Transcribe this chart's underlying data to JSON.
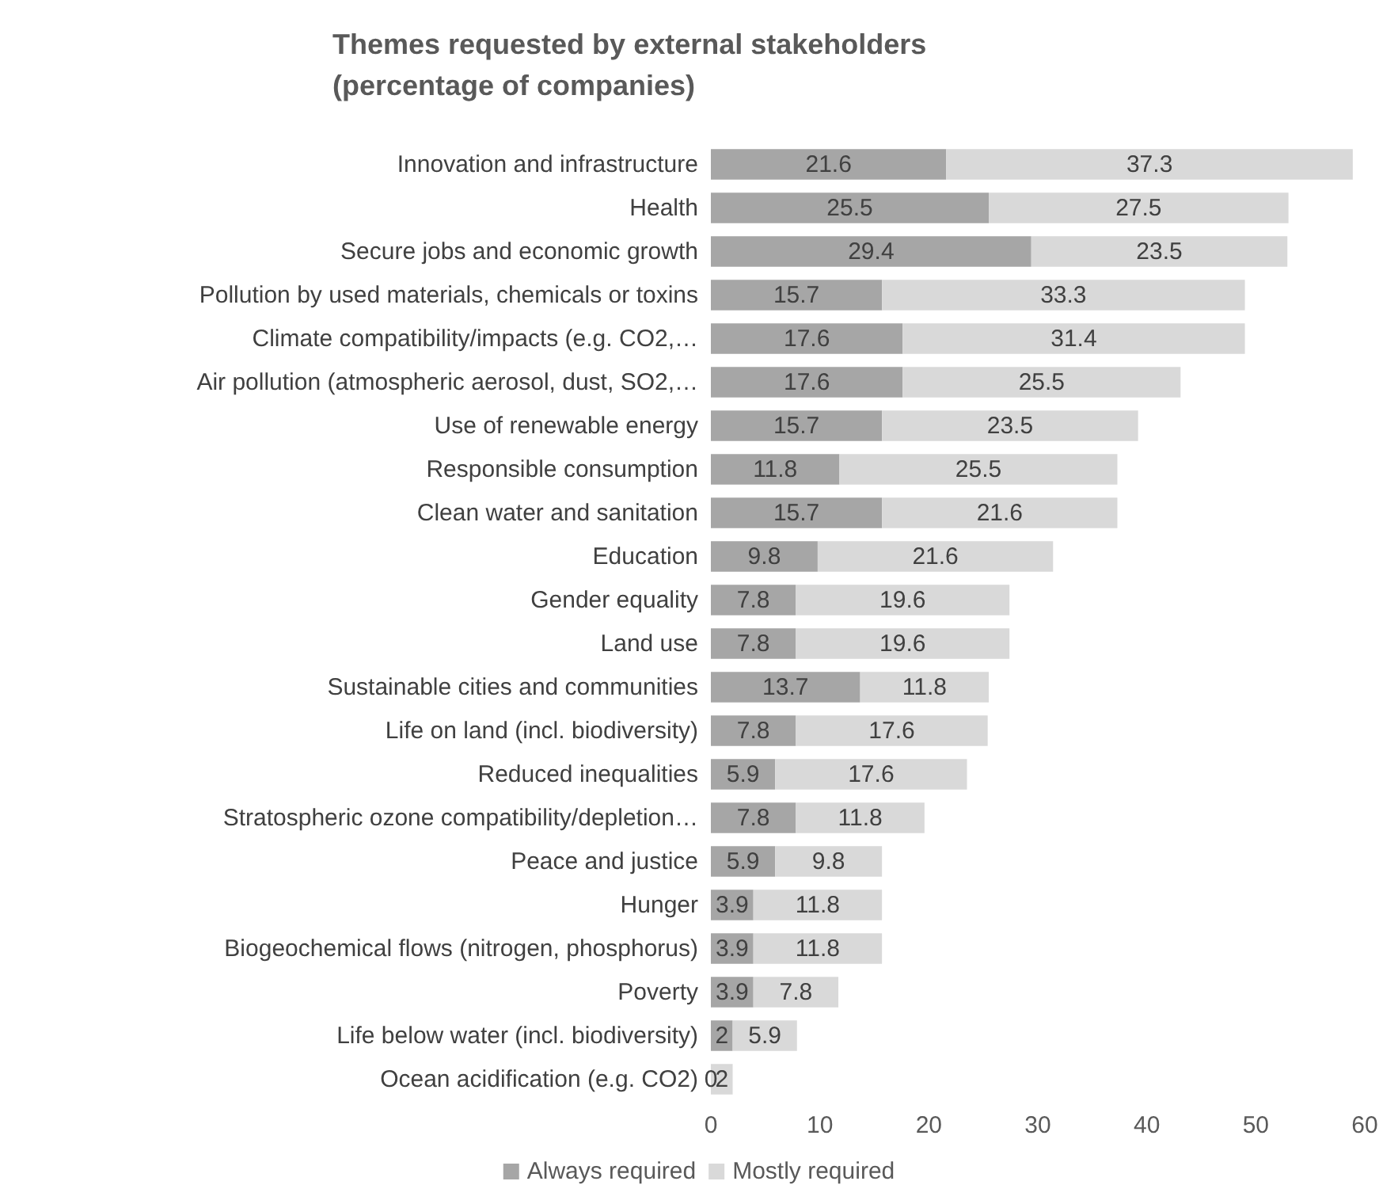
{
  "chart_data": {
    "type": "bar",
    "orientation": "horizontal",
    "stacked": true,
    "title": "Themes requested by external stakeholders (percentage of companies)",
    "categories": [
      "Innovation and infrastructure",
      "Health",
      "Secure jobs and economic growth",
      "Pollution by used materials, chemicals or toxins",
      "Climate compatibility/impacts (e.g. CO2,…",
      "Air pollution (atmospheric aerosol, dust, SO2,…",
      "Use of renewable energy",
      "Responsible consumption",
      "Clean water and sanitation",
      "Education",
      "Gender equality",
      "Land use",
      "Sustainable cities and communities",
      "Life on land (incl. biodiversity)",
      "Reduced inequalities",
      "Stratospheric ozone compatibility/depletion…",
      "Peace and justice",
      "Hunger",
      "Biogeochemical flows (nitrogen, phosphorus)",
      "Poverty",
      "Life below water (incl. biodiversity)",
      "Ocean acidification (e.g. CO2)"
    ],
    "series": [
      {
        "name": "Always required",
        "color": "#a6a6a6",
        "values": [
          21.6,
          25.5,
          29.4,
          15.7,
          17.6,
          17.6,
          15.7,
          11.8,
          15.7,
          9.8,
          7.8,
          7.8,
          13.7,
          7.8,
          5.9,
          7.8,
          5.9,
          3.9,
          3.9,
          3.9,
          2,
          0
        ]
      },
      {
        "name": "Mostly required",
        "color": "#d9d9d9",
        "values": [
          37.3,
          27.5,
          23.5,
          33.3,
          31.4,
          25.5,
          23.5,
          25.5,
          21.6,
          21.6,
          19.6,
          19.6,
          11.8,
          17.6,
          17.6,
          11.8,
          9.8,
          11.8,
          11.8,
          7.8,
          5.9,
          2
        ]
      }
    ],
    "xlim": [
      0,
      60
    ],
    "xticks": [
      0,
      10,
      20,
      30,
      40,
      50,
      60
    ],
    "data_labels": true,
    "grid": false,
    "legend": "bottom"
  }
}
